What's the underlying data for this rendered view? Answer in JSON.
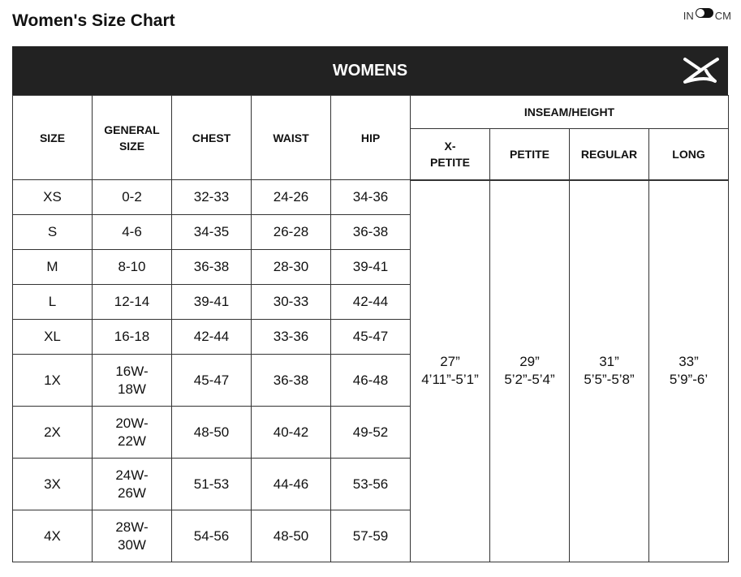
{
  "title": "Women's Size Chart",
  "units": {
    "left": "IN",
    "right": "CM",
    "selected": "IN"
  },
  "banner": {
    "title": "WOMENS",
    "logo": "x-logo-icon"
  },
  "headers": {
    "size": "SIZE",
    "general": [
      "GENERAL",
      "SIZE"
    ],
    "chest": "CHEST",
    "waist": "WAIST",
    "hip": "HIP",
    "inseam": "INSEAM/HEIGHT",
    "x_petite": [
      "X-",
      "PETITE"
    ],
    "petite": "PETITE",
    "regular": "REGULAR",
    "long": "LONG"
  },
  "rows": [
    {
      "size": "XS",
      "general": [
        "0-2"
      ],
      "chest": "32-33",
      "waist": "24-26",
      "hip": "34-36"
    },
    {
      "size": "S",
      "general": [
        "4-6"
      ],
      "chest": "34-35",
      "waist": "26-28",
      "hip": "36-38"
    },
    {
      "size": "M",
      "general": [
        "8-10"
      ],
      "chest": "36-38",
      "waist": "28-30",
      "hip": "39-41"
    },
    {
      "size": "L",
      "general": [
        "12-14"
      ],
      "chest": "39-41",
      "waist": "30-33",
      "hip": "42-44"
    },
    {
      "size": "XL",
      "general": [
        "16-18"
      ],
      "chest": "42-44",
      "waist": "33-36",
      "hip": "45-47"
    },
    {
      "size": "1X",
      "general": [
        "16W-",
        "18W"
      ],
      "chest": "45-47",
      "waist": "36-38",
      "hip": "46-48"
    },
    {
      "size": "2X",
      "general": [
        "20W-",
        "22W"
      ],
      "chest": "48-50",
      "waist": "40-42",
      "hip": "49-52"
    },
    {
      "size": "3X",
      "general": [
        "24W-",
        "26W"
      ],
      "chest": "51-53",
      "waist": "44-46",
      "hip": "53-56"
    },
    {
      "size": "4X",
      "general": [
        "28W-",
        "30W"
      ],
      "chest": "54-56",
      "waist": "48-50",
      "hip": "57-59"
    }
  ],
  "inseam": [
    {
      "inseam": "27”",
      "height": "4’11”-5’1”"
    },
    {
      "inseam": "29”",
      "height": "5’2”-5’4”"
    },
    {
      "inseam": "31”",
      "height": "5’5”-5’8”"
    },
    {
      "inseam": "33”",
      "height": "5’9”-6’"
    }
  ]
}
